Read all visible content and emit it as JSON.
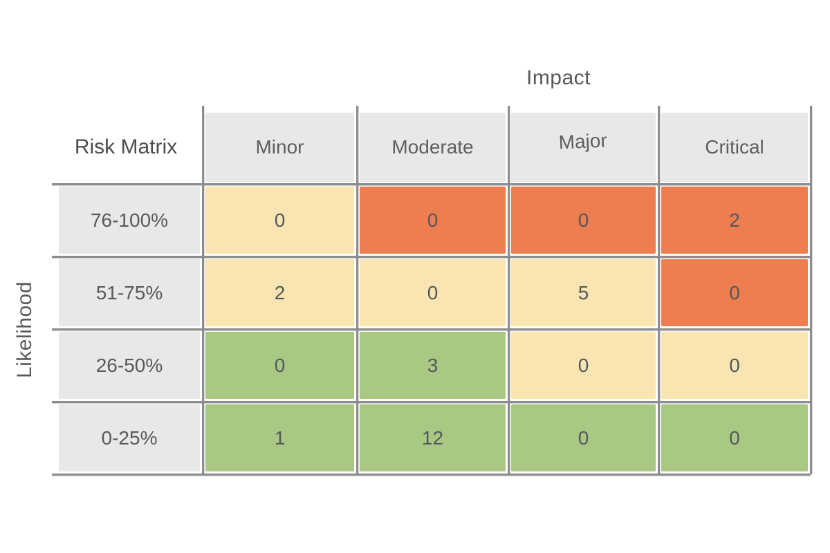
{
  "chart_data": {
    "type": "heatmap",
    "title": "Risk Matrix",
    "xlabel": "Impact",
    "ylabel": "Likelihood",
    "columns": [
      "Minor",
      "Moderate",
      "Major",
      "Critical"
    ],
    "rows": [
      "76-100%",
      "51-75%",
      "26-50%",
      "0-25%"
    ],
    "values": [
      [
        0,
        0,
        0,
        2
      ],
      [
        2,
        0,
        5,
        0
      ],
      [
        0,
        3,
        0,
        0
      ],
      [
        1,
        12,
        0,
        0
      ]
    ],
    "severity": [
      [
        "medium",
        "high",
        "high",
        "high"
      ],
      [
        "medium",
        "medium",
        "medium",
        "high"
      ],
      [
        "low",
        "low",
        "medium",
        "medium"
      ],
      [
        "low",
        "low",
        "low",
        "low"
      ]
    ],
    "colors": {
      "low": "#a9c884",
      "medium": "#fae5b2",
      "high": "#ee7e50",
      "header_bg": "#e8e8e8",
      "label_bg": "#e8e8e8",
      "grid_line": "#8d8d8d",
      "text": "#595959"
    },
    "legend": "none",
    "grid": true
  }
}
